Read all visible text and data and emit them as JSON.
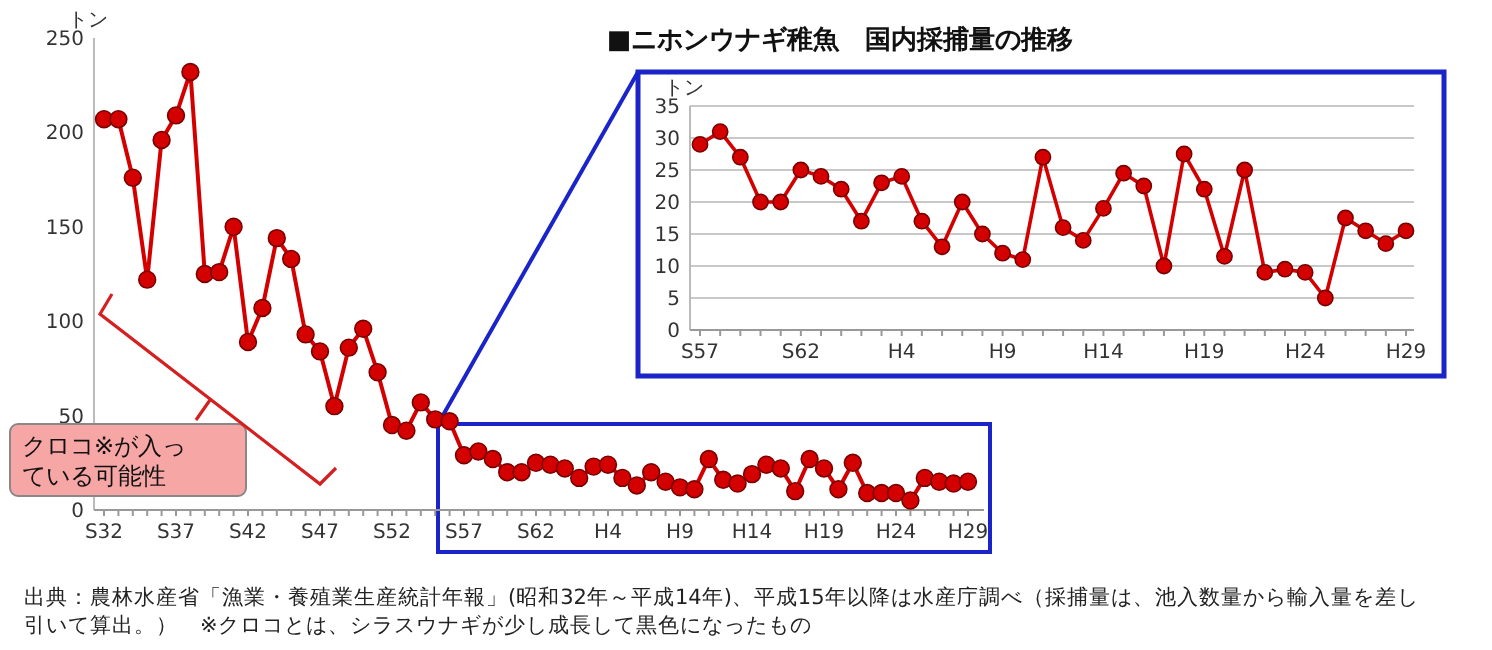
{
  "chart_data": [
    {
      "type": "line",
      "title": "■ニホンウナギ稚魚　国内採捕量の推移",
      "ylabel": "トン",
      "categories": [
        "S32",
        null,
        null,
        null,
        null,
        "S37",
        null,
        null,
        null,
        null,
        "S42",
        null,
        null,
        null,
        null,
        "S47",
        null,
        null,
        null,
        null,
        "S52",
        null,
        null,
        null,
        null,
        "S57",
        null,
        null,
        null,
        null,
        "S62",
        null,
        null,
        null,
        null,
        "H4",
        null,
        null,
        null,
        null,
        "H9",
        null,
        null,
        null,
        null,
        "H14",
        null,
        null,
        null,
        null,
        "H19",
        null,
        null,
        null,
        null,
        "H24",
        null,
        null,
        null,
        null,
        "H29"
      ],
      "values": [
        207,
        207,
        176,
        122,
        196,
        209,
        232,
        125,
        126,
        150,
        89,
        107,
        144,
        133,
        93,
        84,
        55,
        86,
        96,
        73,
        45,
        42,
        57,
        48,
        47,
        29,
        31,
        27,
        20,
        20,
        25,
        24,
        22,
        17,
        23,
        24,
        17,
        13,
        20,
        15,
        12,
        11,
        27,
        16,
        14,
        19,
        24,
        22,
        10,
        27,
        22,
        11,
        25,
        9,
        9,
        9,
        5,
        17,
        15,
        14,
        15
      ],
      "color": "#d40000",
      "ylim": [
        0,
        250
      ],
      "yticks": [
        0,
        50,
        100,
        150,
        200,
        250
      ],
      "grid": false,
      "marker": "circle",
      "annotations": [
        "クロコ※が入っている可能性",
        "出典：農林水産省「漁業・養殖業生産統計年報」(昭和32年～平成14年)、平成15年以降は水産庁調べ（採捕量は、池入数量から輸入量を差し引いて算出。）　※クロコとは、シラスウナギが少し成長して黒色になったもの"
      ]
    },
    {
      "type": "line",
      "ylabel": "トン",
      "categories": [
        "S57",
        null,
        null,
        null,
        null,
        "S62",
        null,
        null,
        null,
        null,
        "H4",
        null,
        null,
        null,
        null,
        "H9",
        null,
        null,
        null,
        null,
        "H14",
        null,
        null,
        null,
        null,
        "H19",
        null,
        null,
        null,
        null,
        "H24",
        null,
        null,
        null,
        null,
        "H29"
      ],
      "values": [
        29,
        31,
        27,
        20,
        20,
        25,
        24,
        22,
        17,
        23,
        24,
        17,
        13,
        20,
        15,
        12,
        11,
        27,
        16,
        14,
        19,
        24.5,
        22.5,
        10,
        27.5,
        22,
        11.5,
        25,
        9,
        9.5,
        9,
        5,
        17.5,
        15.5,
        13.5,
        15.5
      ],
      "color": "#d40000",
      "ylim": [
        0,
        35
      ],
      "yticks": [
        0,
        5,
        10,
        15,
        20,
        25,
        30,
        35
      ],
      "grid": "y",
      "marker": "circle"
    }
  ]
}
